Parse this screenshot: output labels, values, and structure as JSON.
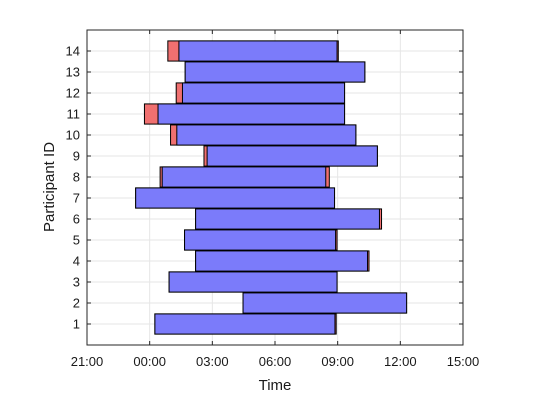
{
  "chart_data": {
    "type": "bar",
    "orientation": "horizontal",
    "title": "",
    "xlabel": "Time",
    "ylabel": "Participant ID",
    "x_ticks": [
      "21:00",
      "00:00",
      "03:00",
      "06:00",
      "09:00",
      "12:00",
      "15:00"
    ],
    "xlim_hours": [
      -3,
      15
    ],
    "ylim": [
      0,
      15
    ],
    "y_ticks": [
      1,
      2,
      3,
      4,
      5,
      6,
      7,
      8,
      9,
      10,
      11,
      12,
      13,
      14
    ],
    "grid": true,
    "colors": {
      "main": "#7b7bfa",
      "extra": "#f07070",
      "edge": "#000000",
      "grid": "#e6e6e6"
    },
    "series": [
      {
        "color_key": "extra",
        "values": [
          {
            "id": 1,
            "start": 0.25,
            "end": 8.93
          },
          {
            "id": 2,
            "start": 4.47,
            "end": 12.3
          },
          {
            "id": 3,
            "start": 0.93,
            "end": 8.97
          },
          {
            "id": 4,
            "start": 2.2,
            "end": 10.5
          },
          {
            "id": 5,
            "start": 1.67,
            "end": 8.97
          },
          {
            "id": 6,
            "start": 2.2,
            "end": 11.1
          },
          {
            "id": 7,
            "start": -0.67,
            "end": 8.85
          },
          {
            "id": 8,
            "start": 0.5,
            "end": 8.6
          },
          {
            "id": 9,
            "start": 2.6,
            "end": 10.9
          },
          {
            "id": 10,
            "start": 1.0,
            "end": 9.87
          },
          {
            "id": 11,
            "start": -0.25,
            "end": 9.33
          },
          {
            "id": 12,
            "start": 1.27,
            "end": 9.33
          },
          {
            "id": 13,
            "start": 1.7,
            "end": 10.3
          },
          {
            "id": 14,
            "start": 0.87,
            "end": 9.03
          }
        ]
      },
      {
        "color_key": "main",
        "values": [
          {
            "id": 1,
            "start": 0.25,
            "end": 8.87
          },
          {
            "id": 2,
            "start": 4.47,
            "end": 12.3
          },
          {
            "id": 3,
            "start": 0.93,
            "end": 8.97
          },
          {
            "id": 4,
            "start": 2.2,
            "end": 10.43
          },
          {
            "id": 5,
            "start": 1.67,
            "end": 8.9
          },
          {
            "id": 6,
            "start": 2.2,
            "end": 11.0
          },
          {
            "id": 7,
            "start": -0.67,
            "end": 8.85
          },
          {
            "id": 8,
            "start": 0.6,
            "end": 8.43
          },
          {
            "id": 9,
            "start": 2.75,
            "end": 10.9
          },
          {
            "id": 10,
            "start": 1.3,
            "end": 9.87
          },
          {
            "id": 11,
            "start": 0.4,
            "end": 9.33
          },
          {
            "id": 12,
            "start": 1.57,
            "end": 9.33
          },
          {
            "id": 13,
            "start": 1.7,
            "end": 10.3
          },
          {
            "id": 14,
            "start": 1.4,
            "end": 8.97
          }
        ]
      }
    ]
  }
}
